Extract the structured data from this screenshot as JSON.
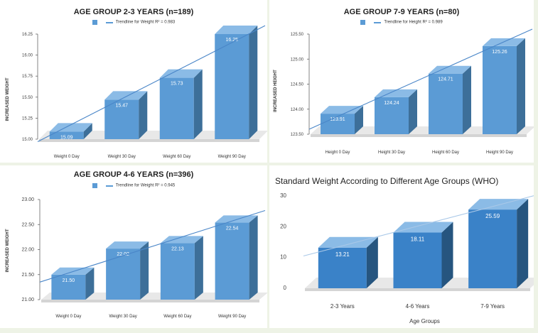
{
  "chart_data": [
    {
      "type": "bar",
      "title": "AGE GROUP 2-3 YEARS (n=189)",
      "legend": {
        "series": "",
        "trendline": "Trendline for Weight R² = 0.983"
      },
      "ylabel": "INCREASED WEIGHT",
      "categories": [
        "Weight 0 Day",
        "Weight 30 Day",
        "Weight 60 Day",
        "Weight 90 Day"
      ],
      "values": [
        15.09,
        15.47,
        15.73,
        16.25
      ],
      "value_labels": [
        "15.09",
        "15.47",
        "15.73",
        "16.25"
      ],
      "ylim": [
        15.0,
        16.25
      ],
      "yticks": [
        "15.00",
        "15.25",
        "15.50",
        "15.75",
        "16.00",
        "16.25"
      ],
      "trendline": [
        14.97,
        16.35
      ]
    },
    {
      "type": "bar",
      "title": "AGE GROUP 7-9 YEARS (n=80)",
      "legend": {
        "series": "",
        "trendline": "Trendline for Height R² = 0.989"
      },
      "ylabel": "INCREASED HEIGHT",
      "categories": [
        "Height 0 Day",
        "Height 30 Day",
        "Height 60 Day",
        "Height 90 Day"
      ],
      "values": [
        123.91,
        124.24,
        124.71,
        125.26
      ],
      "value_labels": [
        "123.91",
        "124.24",
        "124.71",
        "125.26"
      ],
      "ylim": [
        123.5,
        125.5
      ],
      "yticks": [
        "123.50",
        "124.00",
        "124.50",
        "125.00",
        "125.50"
      ],
      "trendline": [
        123.6,
        125.6
      ]
    },
    {
      "type": "bar",
      "title": "AGE GROUP 4-6 YEARS (n=396)",
      "legend": {
        "series": "",
        "trendline": "Trendline for Weight R² = 0.945"
      },
      "ylabel": "INCREASED WEIGHT",
      "categories": [
        "Weight 0 Day",
        "Weight 30 Day",
        "Weight 60 Day",
        "Weight 90 Day"
      ],
      "values": [
        21.5,
        22.02,
        22.13,
        22.54
      ],
      "value_labels": [
        "21.50",
        "22.02",
        "22.13",
        "22.54"
      ],
      "ylim": [
        21.0,
        23.0
      ],
      "yticks": [
        "21.00",
        "21.50",
        "22.00",
        "22.50",
        "23.00"
      ],
      "trendline": [
        21.35,
        22.78
      ]
    },
    {
      "type": "bar",
      "title": "Standard Weight According to Different Age Groups (WHO)",
      "xlabel": "Age Groups",
      "ylabel": "",
      "categories": [
        "2-3 Years",
        "4-6 Years",
        "7-9 Years"
      ],
      "values": [
        13.21,
        18.11,
        25.59
      ],
      "value_labels": [
        "13.21",
        "18.11",
        "25.59"
      ],
      "ylim": [
        0,
        30
      ],
      "yticks": [
        "0",
        "10",
        "20",
        "30"
      ],
      "trendline": [
        10.5,
        30.5
      ]
    }
  ],
  "colors": {
    "bar_front": "#5b9bd5",
    "bar_top": "#8bbbe6",
    "bar_side": "#3d6f99",
    "trend": "#4a86c8",
    "who_front": "#3a82c8",
    "who_side": "#26557f",
    "who_trend": "#a9c8e8",
    "floor": "#e8e8e8"
  }
}
